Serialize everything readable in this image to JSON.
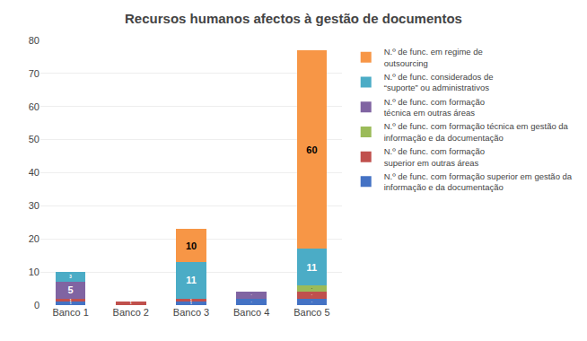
{
  "chart_data": {
    "type": "bar",
    "title": "Recursos humanos afectos à gestão de documentos",
    "categories": [
      "Banco 1",
      "Banco 2",
      "Banco 3",
      "Banco 4",
      "Banco 5"
    ],
    "series": [
      {
        "name": "N.º de func. com formação superior em gestão da\ninformação e da documentação",
        "color": "#4472C4",
        "values": [
          1,
          0,
          1,
          2,
          2
        ]
      },
      {
        "name": "N.º de func. com formação\nsuperior em outras áreas",
        "color": "#C0504D",
        "values": [
          1,
          1,
          1,
          0,
          2
        ]
      },
      {
        "name": "N.º de func. com formação técnica em gestão da\ninformação e da documentação",
        "color": "#9BBB59",
        "values": [
          0,
          0,
          0,
          0,
          2
        ]
      },
      {
        "name": "N.º de func. com formação\ntécnica em outras áreas",
        "color": "#8064A2",
        "values": [
          5,
          0,
          0,
          2,
          0
        ]
      },
      {
        "name": "N.º de func. considerados de\n“suporte” ou administrativos",
        "color": "#4BACC6",
        "values": [
          3,
          0,
          11,
          0,
          11
        ]
      },
      {
        "name": "N.º de func. em regime de\noutsourcing",
        "color": "#F79646",
        "values": [
          0,
          0,
          10,
          0,
          60
        ]
      }
    ],
    "stacked": true,
    "data_labels": true,
    "ylim": [
      0,
      80
    ],
    "yticks": [
      0,
      10,
      20,
      30,
      40,
      50,
      60,
      70,
      80
    ],
    "grid": true,
    "legend": "right"
  }
}
